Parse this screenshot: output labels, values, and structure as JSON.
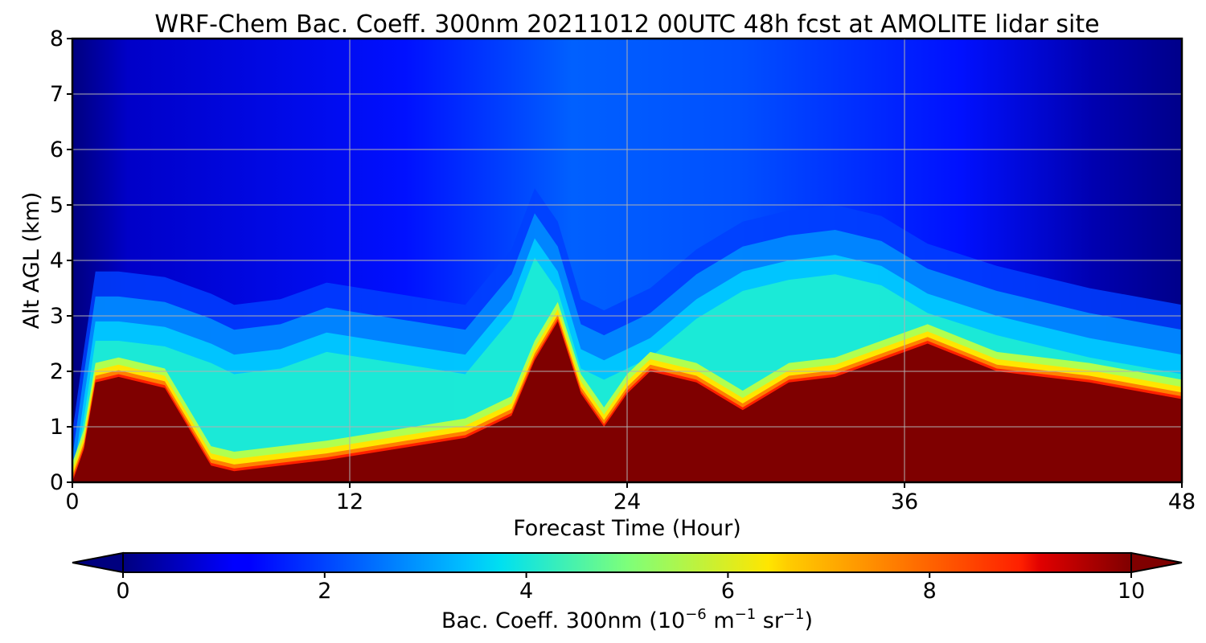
{
  "chart_data": {
    "type": "heatmap",
    "title": "WRF-Chem Bac. Coeff. 300nm  20211012 00UTC 48h fcst at AMOLITE lidar site",
    "xlabel": "Forecast Time (Hour)",
    "ylabel": "Alt AGL (km)",
    "xlim": [
      0,
      48
    ],
    "ylim": [
      0,
      8
    ],
    "x_ticks": [
      "0",
      "12",
      "24",
      "36",
      "48"
    ],
    "y_ticks": [
      "0",
      "1",
      "2",
      "3",
      "4",
      "5",
      "6",
      "7",
      "8"
    ],
    "grid": true,
    "colormap": "jet",
    "colorbar": {
      "orientation": "horizontal",
      "placement": "bottom",
      "extend": "both",
      "range": [
        0,
        10
      ],
      "ticks": [
        "0",
        "2",
        "4",
        "6",
        "8",
        "10"
      ],
      "label_main": "Bac. Coeff. 300nm  (10",
      "label_exp1": "−6",
      "label_mid": " m",
      "label_exp2": "−1",
      "label_mid2": " sr",
      "label_exp3": "−1",
      "label_end": ")"
    },
    "field_description_profiles": {
      "hours": [
        0,
        0.5,
        1,
        2,
        4,
        6,
        7,
        9,
        11,
        14,
        17,
        19,
        20,
        21,
        22,
        23,
        24,
        25,
        27,
        29,
        31,
        33,
        35,
        37,
        40,
        44,
        48
      ],
      "saturation_top_km": [
        0.0,
        0.6,
        1.8,
        1.9,
        1.7,
        0.3,
        0.2,
        0.3,
        0.4,
        0.6,
        0.8,
        1.2,
        2.2,
        2.9,
        1.6,
        1.0,
        1.6,
        2.0,
        1.8,
        1.3,
        1.8,
        1.9,
        2.2,
        2.5,
        2.0,
        1.8,
        1.5
      ],
      "aerosol_layer_top_km": [
        0.0,
        1.5,
        2.9,
        2.9,
        2.8,
        2.5,
        2.3,
        2.4,
        2.7,
        2.5,
        2.3,
        3.3,
        4.4,
        3.8,
        2.4,
        2.2,
        2.4,
        2.6,
        3.3,
        3.8,
        4.0,
        4.1,
        3.9,
        3.4,
        3.0,
        2.6,
        2.3
      ]
    }
  }
}
